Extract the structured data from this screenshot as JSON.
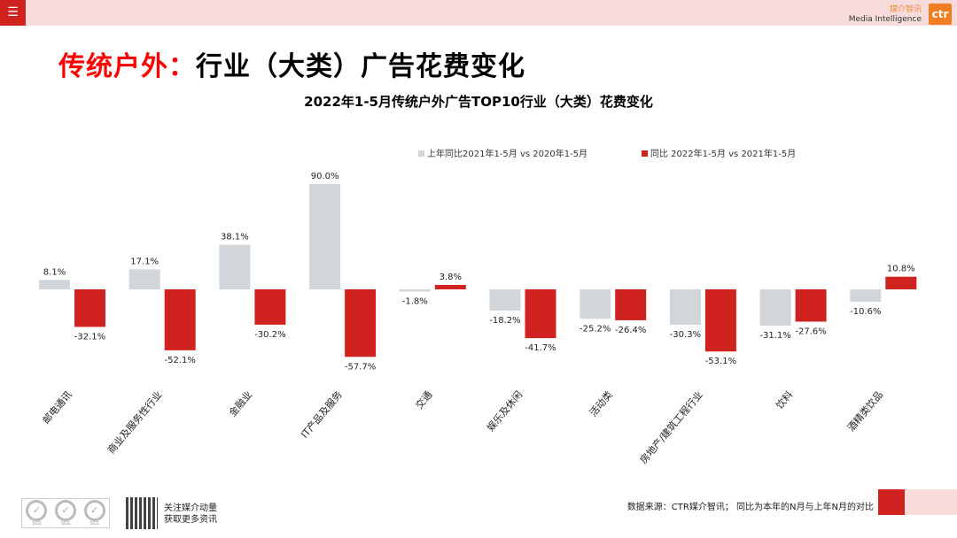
{
  "header": {
    "menu_icon": "hamburger-icon",
    "brand_cn": "媒介智讯",
    "brand_en": "Media Intelligence",
    "logo": "ctr"
  },
  "page_title": {
    "highlight": "传统户外：",
    "rest": "行业（大类）广告花费变化"
  },
  "chart_data": {
    "type": "bar",
    "title": "2022年1-5月传统户外广告TOP10行业（大类）花费变化",
    "categories": [
      "邮电通讯",
      "商业及服务性行业",
      "金融业",
      "IT产品及服务",
      "交通",
      "娱乐及休闲",
      "活动类",
      "房地产/建筑工程行业",
      "饮料",
      "酒精类饮品"
    ],
    "series": [
      {
        "name": "上年同比2021年1-5月  vs  2020年1-5月",
        "color": "#d0d6d9",
        "values": [
          8.1,
          17.1,
          38.1,
          90.0,
          -1.8,
          -18.2,
          -25.2,
          -30.3,
          -31.1,
          -10.6
        ],
        "labels": [
          "8.1%",
          "17.1%",
          "38.1%",
          "90.0%",
          "-1.8%",
          "-18.2%",
          "-25.2%",
          "-30.3%",
          "-31.1%",
          "-10.6%"
        ]
      },
      {
        "name": "同比 2022年1-5月  vs  2021年1-5月",
        "color": "#d0221f",
        "values": [
          -32.1,
          -52.1,
          -30.2,
          -57.7,
          3.8,
          -41.7,
          -26.4,
          -53.1,
          -27.6,
          10.8
        ],
        "labels": [
          "-32.1%",
          "-52.1%",
          "-30.2%",
          "-57.7%",
          "3.8%",
          "-41.7%",
          "-26.4%",
          "-53.1%",
          "-27.6%",
          "10.8%"
        ]
      }
    ],
    "legend": "top",
    "grid": false
  },
  "footer": {
    "source": "数据来源：CTR媒介智讯； 同比为本年的N月与上年N月的对比",
    "follow_line1": "关注媒介动量",
    "follow_line2": "获取更多资讯",
    "sgs": "SGS"
  }
}
